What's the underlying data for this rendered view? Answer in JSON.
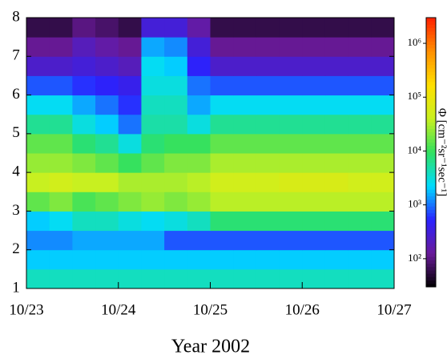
{
  "chart_data": {
    "type": "heatmap",
    "x_label": "Year 2002",
    "colorbar_label": "Φ [cm⁻²sr⁻¹sec⁻¹]",
    "xbins": [
      23,
      23.25,
      23.5,
      23.75,
      24,
      24.25,
      24.5,
      24.75,
      25,
      25.25,
      25.5,
      25.75,
      26,
      26.25,
      26.5,
      26.75,
      27
    ],
    "ybins": [
      1,
      1.5,
      2,
      2.5,
      3,
      3.5,
      4,
      4.5,
      5,
      5.5,
      6,
      6.5,
      7,
      7.5,
      8
    ],
    "z": [
      [
        4000,
        4000,
        4000,
        4000,
        4000,
        4000,
        4000,
        4000,
        4000,
        4000,
        4000,
        4000,
        4000,
        4000,
        4000,
        4000
      ],
      [
        2000,
        2000,
        2000,
        2000,
        2000,
        2000,
        2000,
        2000,
        2000,
        2000,
        2000,
        2000,
        2000,
        2000,
        2000,
        2000
      ],
      [
        1200,
        1200,
        1500,
        1500,
        1500,
        1500,
        800,
        800,
        800,
        800,
        800,
        800,
        800,
        800,
        800,
        800
      ],
      [
        2000,
        2500,
        4000,
        4000,
        3000,
        2500,
        3000,
        4000,
        8000,
        8000,
        8000,
        8000,
        8000,
        8000,
        8000,
        8000
      ],
      [
        15000,
        20000,
        12000,
        15000,
        20000,
        25000,
        20000,
        25000,
        35000,
        35000,
        35000,
        35000,
        35000,
        35000,
        35000,
        35000
      ],
      [
        40000,
        50000,
        40000,
        40000,
        30000,
        30000,
        30000,
        35000,
        50000,
        50000,
        50000,
        60000,
        60000,
        60000,
        50000,
        50000
      ],
      [
        25000,
        25000,
        20000,
        15000,
        10000,
        15000,
        20000,
        20000,
        30000,
        30000,
        30000,
        30000,
        30000,
        30000,
        30000,
        30000
      ],
      [
        15000,
        15000,
        8000,
        6000,
        3000,
        8000,
        10000,
        10000,
        15000,
        15000,
        15000,
        15000,
        15000,
        15000,
        15000,
        15000
      ],
      [
        6000,
        6000,
        3000,
        2000,
        1000,
        5000,
        5000,
        3000,
        6000,
        6000,
        6000,
        6000,
        6000,
        6000,
        6000,
        6000
      ],
      [
        2500,
        2500,
        1500,
        1000,
        600,
        4000,
        4000,
        1500,
        2500,
        2500,
        2500,
        2500,
        2500,
        2500,
        2500,
        2500
      ],
      [
        800,
        800,
        600,
        500,
        400,
        3000,
        3000,
        1000,
        800,
        800,
        800,
        800,
        800,
        800,
        800,
        800
      ],
      [
        250,
        250,
        300,
        250,
        200,
        2500,
        2000,
        500,
        250,
        250,
        250,
        250,
        250,
        250,
        250,
        250
      ],
      [
        120,
        120,
        200,
        150,
        120,
        1500,
        1200,
        300,
        120,
        120,
        120,
        120,
        120,
        120,
        120,
        120
      ],
      [
        60,
        60,
        100,
        80,
        60,
        300,
        300,
        150,
        60,
        60,
        60,
        60,
        60,
        60,
        60,
        60
      ]
    ],
    "xlim": [
      23,
      27
    ],
    "xticks": [
      {
        "value": 23,
        "label": "10/23"
      },
      {
        "value": 24,
        "label": "10/24"
      },
      {
        "value": 25,
        "label": "10/25"
      },
      {
        "value": 26,
        "label": "10/26"
      },
      {
        "value": 27,
        "label": "10/27"
      }
    ],
    "ylim": [
      1,
      8
    ],
    "yticks": [
      1,
      2,
      3,
      4,
      5,
      6,
      7,
      8
    ],
    "zlim": [
      30,
      3000000
    ],
    "zlog": true,
    "zticks": [
      {
        "value": 100,
        "label": "10²"
      },
      {
        "value": 1000,
        "label": "10³"
      },
      {
        "value": 10000,
        "label": "10⁴"
      },
      {
        "value": 100000,
        "label": "10⁵"
      },
      {
        "value": 1000000,
        "label": "10⁶"
      }
    ],
    "colormap": [
      "#000000",
      "#6a1a9a",
      "#2a22ff",
      "#00dcff",
      "#30e060",
      "#c8f020",
      "#ffe000",
      "#ff9000",
      "#ff2000"
    ]
  }
}
